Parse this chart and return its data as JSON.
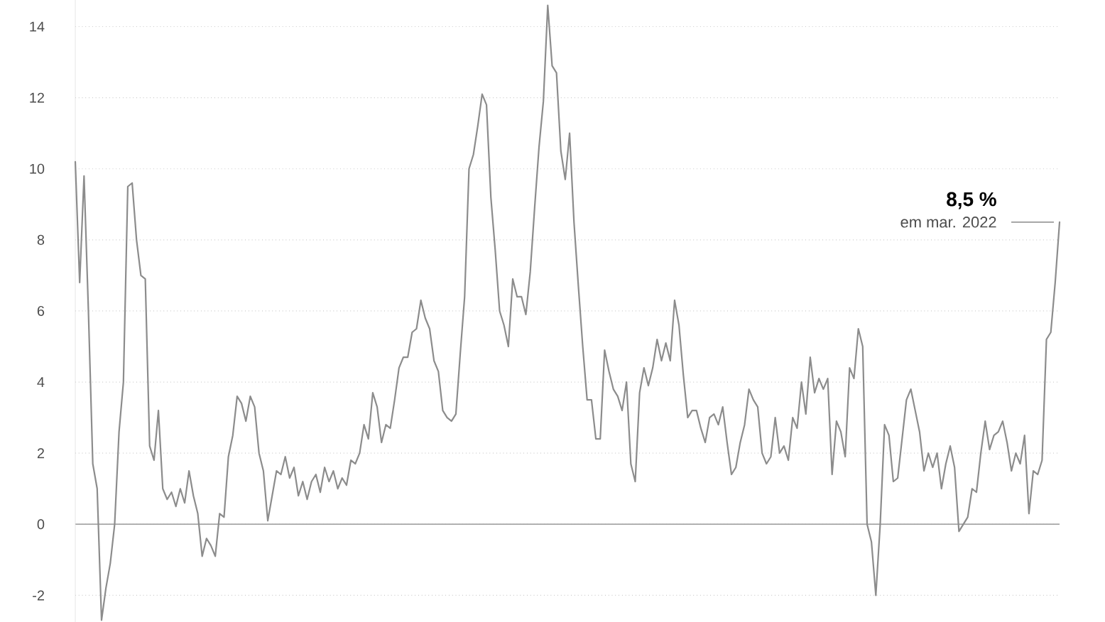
{
  "chart_data": {
    "type": "line",
    "categories": [
      null,
      null,
      null,
      null,
      null,
      null,
      null,
      null,
      null,
      null,
      null,
      null,
      null,
      null,
      null,
      null,
      null,
      null,
      null,
      null,
      null,
      null,
      null,
      null,
      null,
      null,
      null,
      null,
      null,
      null,
      null,
      null,
      null,
      null,
      null,
      null,
      null,
      null,
      null,
      null,
      null,
      null,
      null,
      null,
      null,
      null,
      null,
      null,
      null,
      null,
      null,
      null,
      null,
      null,
      null,
      null,
      null,
      null,
      null,
      null,
      null,
      null,
      null,
      null,
      null,
      null,
      null,
      null,
      null,
      null,
      null,
      null,
      null,
      null,
      null,
      null,
      null,
      null,
      null,
      null,
      null,
      null,
      null,
      null,
      null,
      null,
      null,
      null,
      null,
      null,
      null,
      null,
      null,
      null,
      null,
      null,
      null,
      null,
      null,
      null,
      null,
      null,
      null,
      null,
      null,
      null,
      null,
      null,
      null,
      null,
      null,
      null,
      null,
      null,
      null,
      null,
      null,
      null,
      null,
      null,
      null,
      null,
      null,
      null,
      null,
      null,
      null,
      null,
      null,
      null,
      null,
      null,
      null,
      null,
      null,
      null,
      null,
      null,
      null,
      null,
      null,
      null,
      null,
      null,
      null,
      null,
      null,
      null,
      null,
      null,
      null,
      null,
      null,
      null,
      null,
      null,
      null,
      null,
      null,
      null,
      null,
      null,
      null,
      null,
      null,
      null,
      null,
      null,
      null,
      null,
      null,
      null,
      null,
      null,
      null,
      null,
      null,
      null,
      null,
      null,
      null,
      null,
      null,
      null,
      null,
      null,
      null,
      null,
      null,
      null,
      null,
      null,
      null,
      null,
      null,
      null,
      null,
      null,
      null,
      null,
      null,
      null,
      null,
      null,
      null,
      null,
      null,
      null,
      null,
      null,
      null,
      null,
      null,
      null,
      null,
      null,
      null,
      null,
      null,
      null,
      null,
      null,
      null,
      null,
      null,
      null
    ],
    "values": [
      10.2,
      6.8,
      9.8,
      6.0,
      1.7,
      1.0,
      -2.7,
      -1.8,
      -1.1,
      0,
      2.6,
      4,
      9.5,
      9.6,
      8,
      7,
      6.9,
      2.2,
      1.8,
      3.2,
      1.0,
      0.7,
      0.9,
      0.5,
      1.0,
      0.6,
      1.5,
      0.8,
      0.3,
      -0.9,
      -0.4,
      -0.6,
      -0.9,
      0.3,
      0.2,
      1.9,
      2.5,
      3.6,
      3.4,
      2.9,
      3.6,
      3.3,
      2.0,
      1.5,
      0.1,
      0.8,
      1.5,
      1.4,
      1.9,
      1.3,
      1.6,
      0.8,
      1.2,
      0.7,
      1.2,
      1.4,
      0.9,
      1.6,
      1.2,
      1.5,
      1.0,
      1.3,
      1.1,
      1.8,
      1.7,
      2.0,
      2.8,
      2.4,
      3.7,
      3.3,
      2.3,
      2.8,
      2.7,
      3.5,
      4.4,
      4.7,
      4.7,
      5.4,
      5.5,
      6.3,
      5.8,
      5.5,
      4.6,
      4.3,
      3.2,
      3.0,
      2.9,
      3.1,
      4.8,
      6.4,
      10.0,
      10.4,
      11.2,
      12.1,
      11.8,
      9.2,
      7.7,
      6.0,
      5.6,
      5.0,
      6.9,
      6.4,
      6.4,
      5.9,
      7.1,
      8.9,
      10.6,
      11.9,
      14.6,
      12.9,
      12.7,
      10.5,
      9.7,
      11.0,
      8.5,
      6.7,
      5.0,
      3.5,
      3.5,
      2.4,
      2.4,
      4.9,
      4.3,
      3.8,
      3.6,
      3.2,
      4.0,
      1.7,
      1.2,
      3.7,
      4.4,
      3.9,
      4.4,
      5.2,
      4.6,
      5.1,
      4.6,
      6.3,
      5.6,
      4.2,
      3.0,
      3.2,
      3.2,
      2.7,
      2.3,
      3.0,
      3.1,
      2.8,
      3.3,
      2.3,
      1.4,
      1.6,
      2.3,
      2.8,
      3.8,
      3.5,
      3.3,
      2.0,
      1.7,
      1.9,
      3.0,
      2.0,
      2.2,
      1.8,
      3.0,
      2.7,
      4.0,
      3.1,
      4.7,
      3.7,
      4.1,
      3.8,
      4.1,
      1.4,
      2.9,
      2.6,
      1.9,
      4.4,
      4.1,
      5.5,
      5.0,
      0,
      -0.5,
      -2.0,
      0,
      2.8,
      2.5,
      1.2,
      1.3,
      2.4,
      3.5,
      3.8,
      3.2,
      2.6,
      1.5,
      2.0,
      1.6,
      2.0,
      1.0,
      1.7,
      2.2,
      1.6,
      -0.2,
      0.0,
      0.2,
      1.0,
      0.9,
      2.0,
      2.9,
      2.1,
      2.5,
      2.6,
      2.9,
      2.3,
      1.5,
      2.0,
      1.7,
      2.5,
      0.3,
      1.5,
      1.4,
      1.8,
      5.2,
      5.4,
      6.8,
      8.5
    ],
    "color": "#8c8c8c",
    "ylim": [
      -2.75,
      14.75
    ],
    "yticks": [
      -2,
      0,
      2,
      4,
      6,
      8,
      10,
      12,
      14
    ],
    "grid": "y",
    "tick_labels": "y",
    "annotations": [
      "8,5 %",
      "em mar. 2022"
    ]
  }
}
